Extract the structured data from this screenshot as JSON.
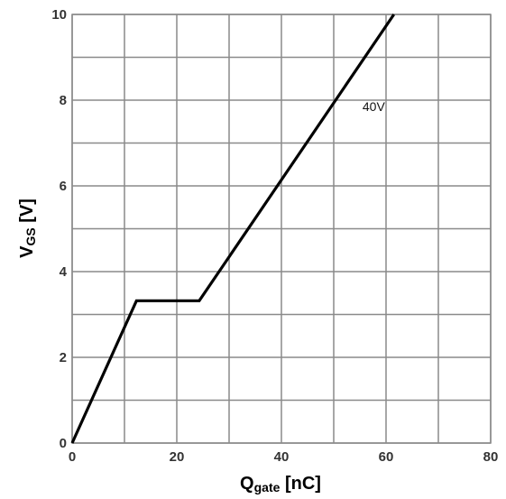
{
  "chart_data": {
    "type": "line",
    "xlabel": {
      "main": "Q",
      "sub": "gate",
      "unit": " [nC]"
    },
    "ylabel": {
      "main": "V",
      "sub": "GS",
      "unit": " [V]"
    },
    "xlim": [
      0,
      80
    ],
    "ylim": [
      0,
      10
    ],
    "x_ticks": [
      "0",
      "20",
      "40",
      "60",
      "80"
    ],
    "y_ticks": [
      "0",
      "2",
      "4",
      "6",
      "8",
      "10"
    ],
    "x_tick_values": [
      0,
      20,
      40,
      60,
      80
    ],
    "y_tick_values": [
      0,
      2,
      4,
      6,
      8,
      10
    ],
    "x_grid_step": 10,
    "y_grid_step": 1,
    "grid": true,
    "series": [
      {
        "x": [
          0,
          12.3,
          24.3,
          61.5
        ],
        "y": [
          0,
          3.32,
          3.32,
          10
        ],
        "color": "#000000"
      }
    ],
    "annotations": [
      {
        "text": "40V",
        "x": 55.5,
        "y": 7.85
      }
    ]
  }
}
